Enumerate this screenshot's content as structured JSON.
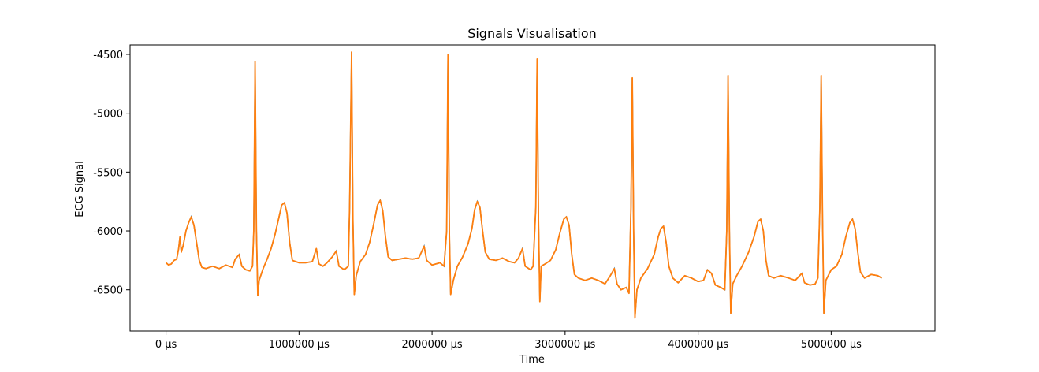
{
  "chart_data": {
    "type": "line",
    "title": "Signals Visualisation",
    "xlabel": "Time",
    "ylabel": "ECG Signal",
    "xlim": [
      -270000,
      5780000
    ],
    "ylim": [
      -6850,
      -4420
    ],
    "x_ticks": [
      {
        "value": 0,
        "label": "0 µs"
      },
      {
        "value": 1000000,
        "label": "1000000 µs"
      },
      {
        "value": 2000000,
        "label": "2000000 µs"
      },
      {
        "value": 3000000,
        "label": "3000000 µs"
      },
      {
        "value": 4000000,
        "label": "4000000 µs"
      },
      {
        "value": 5000000,
        "label": "5000000 µs"
      }
    ],
    "y_ticks": [
      {
        "value": -4500,
        "label": "-4500"
      },
      {
        "value": -5000,
        "label": "-5000"
      },
      {
        "value": -5500,
        "label": "-5500"
      },
      {
        "value": -6000,
        "label": "-6000"
      },
      {
        "value": -6500,
        "label": "-6500"
      }
    ],
    "grid": false,
    "series": [
      {
        "color": "#ff7f0e",
        "overlay_color": "#1f77b4",
        "points": [
          [
            0,
            -6270
          ],
          [
            20000,
            -6290
          ],
          [
            40000,
            -6280
          ],
          [
            60000,
            -6250
          ],
          [
            80000,
            -6240
          ],
          [
            95000,
            -6150
          ],
          [
            105000,
            -6050
          ],
          [
            115000,
            -6180
          ],
          [
            130000,
            -6120
          ],
          [
            150000,
            -6000
          ],
          [
            170000,
            -5930
          ],
          [
            190000,
            -5880
          ],
          [
            210000,
            -5950
          ],
          [
            230000,
            -6100
          ],
          [
            250000,
            -6250
          ],
          [
            270000,
            -6310
          ],
          [
            300000,
            -6320
          ],
          [
            350000,
            -6300
          ],
          [
            400000,
            -6320
          ],
          [
            450000,
            -6290
          ],
          [
            500000,
            -6310
          ],
          [
            520000,
            -6240
          ],
          [
            550000,
            -6200
          ],
          [
            570000,
            -6300
          ],
          [
            600000,
            -6330
          ],
          [
            630000,
            -6340
          ],
          [
            650000,
            -6300
          ],
          [
            660000,
            -6000
          ],
          [
            670000,
            -4560
          ],
          [
            680000,
            -6000
          ],
          [
            690000,
            -6550
          ],
          [
            700000,
            -6420
          ],
          [
            730000,
            -6320
          ],
          [
            760000,
            -6240
          ],
          [
            790000,
            -6150
          ],
          [
            820000,
            -6030
          ],
          [
            850000,
            -5880
          ],
          [
            870000,
            -5780
          ],
          [
            890000,
            -5760
          ],
          [
            910000,
            -5850
          ],
          [
            930000,
            -6100
          ],
          [
            950000,
            -6250
          ],
          [
            1000000,
            -6270
          ],
          [
            1050000,
            -6270
          ],
          [
            1100000,
            -6260
          ],
          [
            1130000,
            -6150
          ],
          [
            1150000,
            -6280
          ],
          [
            1180000,
            -6300
          ],
          [
            1210000,
            -6270
          ],
          [
            1250000,
            -6220
          ],
          [
            1280000,
            -6170
          ],
          [
            1300000,
            -6300
          ],
          [
            1340000,
            -6330
          ],
          [
            1370000,
            -6300
          ],
          [
            1380000,
            -5800
          ],
          [
            1395000,
            -4480
          ],
          [
            1405000,
            -5900
          ],
          [
            1415000,
            -6540
          ],
          [
            1430000,
            -6380
          ],
          [
            1460000,
            -6260
          ],
          [
            1500000,
            -6200
          ],
          [
            1530000,
            -6100
          ],
          [
            1560000,
            -5950
          ],
          [
            1590000,
            -5780
          ],
          [
            1610000,
            -5740
          ],
          [
            1630000,
            -5830
          ],
          [
            1650000,
            -6050
          ],
          [
            1670000,
            -6220
          ],
          [
            1700000,
            -6250
          ],
          [
            1750000,
            -6240
          ],
          [
            1800000,
            -6230
          ],
          [
            1850000,
            -6240
          ],
          [
            1900000,
            -6230
          ],
          [
            1940000,
            -6130
          ],
          [
            1960000,
            -6250
          ],
          [
            2000000,
            -6290
          ],
          [
            2060000,
            -6270
          ],
          [
            2090000,
            -6300
          ],
          [
            2110000,
            -6000
          ],
          [
            2120000,
            -4500
          ],
          [
            2130000,
            -6000
          ],
          [
            2140000,
            -6540
          ],
          [
            2160000,
            -6420
          ],
          [
            2190000,
            -6300
          ],
          [
            2230000,
            -6220
          ],
          [
            2270000,
            -6110
          ],
          [
            2300000,
            -5980
          ],
          [
            2320000,
            -5820
          ],
          [
            2340000,
            -5750
          ],
          [
            2360000,
            -5800
          ],
          [
            2380000,
            -6000
          ],
          [
            2400000,
            -6180
          ],
          [
            2430000,
            -6240
          ],
          [
            2480000,
            -6250
          ],
          [
            2530000,
            -6230
          ],
          [
            2580000,
            -6260
          ],
          [
            2620000,
            -6270
          ],
          [
            2650000,
            -6230
          ],
          [
            2680000,
            -6150
          ],
          [
            2700000,
            -6300
          ],
          [
            2740000,
            -6330
          ],
          [
            2760000,
            -6300
          ],
          [
            2780000,
            -5800
          ],
          [
            2790000,
            -4540
          ],
          [
            2800000,
            -5900
          ],
          [
            2810000,
            -6600
          ],
          [
            2820000,
            -6300
          ],
          [
            2850000,
            -6280
          ],
          [
            2890000,
            -6250
          ],
          [
            2930000,
            -6160
          ],
          [
            2960000,
            -6020
          ],
          [
            2990000,
            -5900
          ],
          [
            3010000,
            -5880
          ],
          [
            3030000,
            -5950
          ],
          [
            3050000,
            -6200
          ],
          [
            3070000,
            -6370
          ],
          [
            3100000,
            -6400
          ],
          [
            3150000,
            -6420
          ],
          [
            3200000,
            -6400
          ],
          [
            3250000,
            -6420
          ],
          [
            3300000,
            -6450
          ],
          [
            3340000,
            -6380
          ],
          [
            3370000,
            -6320
          ],
          [
            3390000,
            -6450
          ],
          [
            3420000,
            -6500
          ],
          [
            3460000,
            -6480
          ],
          [
            3480000,
            -6530
          ],
          [
            3495000,
            -5800
          ],
          [
            3505000,
            -4700
          ],
          [
            3515000,
            -6000
          ],
          [
            3525000,
            -6740
          ],
          [
            3540000,
            -6500
          ],
          [
            3570000,
            -6400
          ],
          [
            3620000,
            -6320
          ],
          [
            3670000,
            -6200
          ],
          [
            3700000,
            -6050
          ],
          [
            3720000,
            -5980
          ],
          [
            3740000,
            -5960
          ],
          [
            3760000,
            -6100
          ],
          [
            3780000,
            -6300
          ],
          [
            3810000,
            -6400
          ],
          [
            3850000,
            -6440
          ],
          [
            3900000,
            -6380
          ],
          [
            3950000,
            -6400
          ],
          [
            4000000,
            -6430
          ],
          [
            4040000,
            -6420
          ],
          [
            4070000,
            -6330
          ],
          [
            4100000,
            -6360
          ],
          [
            4130000,
            -6460
          ],
          [
            4170000,
            -6480
          ],
          [
            4200000,
            -6500
          ],
          [
            4215000,
            -6000
          ],
          [
            4225000,
            -4680
          ],
          [
            4235000,
            -6000
          ],
          [
            4245000,
            -6700
          ],
          [
            4260000,
            -6450
          ],
          [
            4290000,
            -6380
          ],
          [
            4330000,
            -6300
          ],
          [
            4380000,
            -6180
          ],
          [
            4420000,
            -6050
          ],
          [
            4450000,
            -5920
          ],
          [
            4470000,
            -5900
          ],
          [
            4490000,
            -6000
          ],
          [
            4510000,
            -6250
          ],
          [
            4530000,
            -6380
          ],
          [
            4570000,
            -6400
          ],
          [
            4620000,
            -6380
          ],
          [
            4680000,
            -6400
          ],
          [
            4730000,
            -6420
          ],
          [
            4780000,
            -6360
          ],
          [
            4800000,
            -6440
          ],
          [
            4840000,
            -6460
          ],
          [
            4880000,
            -6450
          ],
          [
            4900000,
            -6400
          ],
          [
            4915000,
            -5800
          ],
          [
            4925000,
            -4680
          ],
          [
            4935000,
            -5900
          ],
          [
            4945000,
            -6700
          ],
          [
            4960000,
            -6420
          ],
          [
            5000000,
            -6330
          ],
          [
            5040000,
            -6300
          ],
          [
            5080000,
            -6200
          ],
          [
            5110000,
            -6050
          ],
          [
            5140000,
            -5930
          ],
          [
            5160000,
            -5900
          ],
          [
            5180000,
            -5980
          ],
          [
            5200000,
            -6180
          ],
          [
            5220000,
            -6350
          ],
          [
            5250000,
            -6400
          ],
          [
            5300000,
            -6370
          ],
          [
            5350000,
            -6380
          ],
          [
            5380000,
            -6400
          ]
        ]
      }
    ]
  }
}
